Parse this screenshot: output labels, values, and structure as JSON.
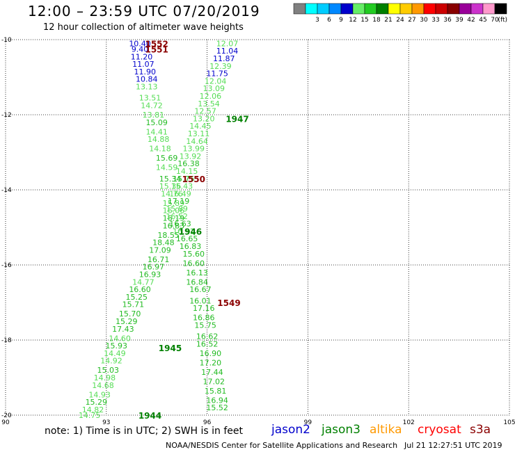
{
  "header": {
    "title": "12:00 – 23:59 UTC 07/20/2019",
    "subtitle": "12 hour collection of altimeter wave heights"
  },
  "footer": {
    "note": "note: 1) Time is in UTC; 2) SWH is in feet",
    "credit": "NOAA/NESDIS Center for Satellite Applications and Research",
    "timestamp": "Jul 21 12:27:51 UTC 2019"
  },
  "satellites": [
    {
      "name": "jason2",
      "color": "#0000cc"
    },
    {
      "name": "jason3",
      "color": "#008000"
    },
    {
      "name": "altika",
      "color": "#ff9900"
    },
    {
      "name": "cryosat",
      "color": "#ff0000"
    },
    {
      "name": "s3a",
      "color": "#8b0000"
    }
  ],
  "colorbar": {
    "unit_label": "(ft)",
    "items": [
      {
        "label": "",
        "color": "#808080"
      },
      {
        "label": "3",
        "color": "#00ffff"
      },
      {
        "label": "6",
        "color": "#00ccff"
      },
      {
        "label": "9",
        "color": "#0088ff"
      },
      {
        "label": "12",
        "color": "#0000cc"
      },
      {
        "label": "15",
        "color": "#66ee66"
      },
      {
        "label": "18",
        "color": "#22cc22"
      },
      {
        "label": "21",
        "color": "#008000"
      },
      {
        "label": "24",
        "color": "#ffff00"
      },
      {
        "label": "27",
        "color": "#ffcc00"
      },
      {
        "label": "30",
        "color": "#ff9900"
      },
      {
        "label": "33",
        "color": "#ff0000"
      },
      {
        "label": "36",
        "color": "#cc0000"
      },
      {
        "label": "39",
        "color": "#880000"
      },
      {
        "label": "42",
        "color": "#990099"
      },
      {
        "label": "45",
        "color": "#cc33cc"
      },
      {
        "label": "70",
        "color": "#ff99cc"
      },
      {
        "label": "",
        "color": "#000000"
      }
    ]
  },
  "chart_data": {
    "type": "scatter",
    "title": "12:00 – 23:59 UTC 07/20/2019",
    "subtitle": "12 hour collection of altimeter wave heights",
    "xlim": [
      90,
      105
    ],
    "ylim": [
      -20,
      -10
    ],
    "x_ticks": [
      "90",
      "93",
      "96",
      "99",
      "102",
      "105"
    ],
    "y_ticks": [
      "-10",
      "-12",
      "-14",
      "-16",
      "-18",
      "-20"
    ],
    "grid": true,
    "value_colors": {
      "blue": "#0000cc",
      "light_green": "#55dd55",
      "green": "#22bb22",
      "dark_green": "#008000",
      "dark_red": "#8b0000"
    },
    "time_labels": [
      {
        "text": "1552",
        "lon": 94.5,
        "lat": -10.1,
        "color": "#8b0000"
      },
      {
        "text": "1551",
        "lon": 94.5,
        "lat": -10.25,
        "color": "#8b0000"
      },
      {
        "text": "1947",
        "lon": 96.9,
        "lat": -12.1,
        "color": "#008000"
      },
      {
        "text": "1550",
        "lon": 95.6,
        "lat": -13.7,
        "color": "#8b0000"
      },
      {
        "text": "1946",
        "lon": 95.5,
        "lat": -15.1,
        "color": "#008000"
      },
      {
        "text": "1549",
        "lon": 96.65,
        "lat": -17.0,
        "color": "#8b0000"
      },
      {
        "text": "1945",
        "lon": 94.9,
        "lat": -18.2,
        "color": "#008000"
      },
      {
        "text": "1944",
        "lon": 94.3,
        "lat": -20.0,
        "color": "#008000"
      }
    ],
    "s3a_track_points": [
      {
        "lon": 94.0,
        "lat": -10.1,
        "swh": "10.40",
        "c": "blue"
      },
      {
        "lon": 94.0,
        "lat": -10.25,
        "swh": "9.40",
        "c": "blue"
      },
      {
        "lon": 94.05,
        "lat": -10.45,
        "swh": "11.20",
        "c": "blue"
      },
      {
        "lon": 94.1,
        "lat": -10.65,
        "swh": "11.07",
        "c": "blue"
      },
      {
        "lon": 94.15,
        "lat": -10.85,
        "swh": "11.90",
        "c": "blue"
      },
      {
        "lon": 94.2,
        "lat": -11.05,
        "swh": "10.84",
        "c": "blue"
      },
      {
        "lon": 94.2,
        "lat": -11.25,
        "swh": "13.13",
        "c": "light_green"
      },
      {
        "lon": 94.3,
        "lat": -11.55,
        "swh": "13.51",
        "c": "light_green"
      },
      {
        "lon": 94.35,
        "lat": -11.75,
        "swh": "14.72",
        "c": "light_green"
      },
      {
        "lon": 94.4,
        "lat": -12.0,
        "swh": "13.81",
        "c": "light_green"
      },
      {
        "lon": 94.5,
        "lat": -12.2,
        "swh": "15.09",
        "c": "green"
      },
      {
        "lon": 94.5,
        "lat": -12.45,
        "swh": "14.41",
        "c": "light_green"
      },
      {
        "lon": 94.55,
        "lat": -12.65,
        "swh": "14.88",
        "c": "light_green"
      },
      {
        "lon": 94.6,
        "lat": -12.9,
        "swh": "14.18",
        "c": "light_green"
      },
      {
        "lon": 94.8,
        "lat": -13.15,
        "swh": "15.69",
        "c": "green"
      },
      {
        "lon": 94.8,
        "lat": -13.4,
        "swh": "14.59",
        "c": "light_green"
      },
      {
        "lon": 94.9,
        "lat": -13.7,
        "swh": "15.34",
        "c": "green"
      },
      {
        "lon": 94.9,
        "lat": -13.9,
        "swh": "15.36",
        "c": "light_green"
      },
      {
        "lon": 94.95,
        "lat": -14.1,
        "swh": "14.76",
        "c": "light_green"
      },
      {
        "lon": 95.0,
        "lat": -14.35,
        "swh": "15.89",
        "c": "light_green"
      },
      {
        "lon": 95.0,
        "lat": -14.55,
        "swh": "16.06",
        "c": "light_green"
      },
      {
        "lon": 95.0,
        "lat": -14.75,
        "swh": "16.19",
        "c": "green"
      },
      {
        "lon": 95.0,
        "lat": -14.95,
        "swh": "16.83",
        "c": "green"
      },
      {
        "lon": 94.85,
        "lat": -15.2,
        "swh": "18.55",
        "c": "green"
      },
      {
        "lon": 94.7,
        "lat": -15.4,
        "swh": "18.48",
        "c": "green"
      },
      {
        "lon": 94.6,
        "lat": -15.6,
        "swh": "17.09",
        "c": "green"
      },
      {
        "lon": 94.55,
        "lat": -15.85,
        "swh": "16.71",
        "c": "green"
      },
      {
        "lon": 94.4,
        "lat": -16.05,
        "swh": "16.97",
        "c": "green"
      },
      {
        "lon": 94.3,
        "lat": -16.25,
        "swh": "16.93",
        "c": "green"
      },
      {
        "lon": 94.1,
        "lat": -16.45,
        "swh": "14.77",
        "c": "light_green"
      },
      {
        "lon": 94.0,
        "lat": -16.65,
        "swh": "16.60",
        "c": "green"
      },
      {
        "lon": 93.9,
        "lat": -16.85,
        "swh": "15.25",
        "c": "green"
      },
      {
        "lon": 93.8,
        "lat": -17.05,
        "swh": "15.71",
        "c": "green"
      },
      {
        "lon": 93.7,
        "lat": -17.3,
        "swh": "15.70",
        "c": "green"
      },
      {
        "lon": 93.6,
        "lat": -17.5,
        "swh": "15.29",
        "c": "green"
      },
      {
        "lon": 93.5,
        "lat": -17.7,
        "swh": "17.43",
        "c": "green"
      },
      {
        "lon": 93.4,
        "lat": -17.95,
        "swh": "14.60",
        "c": "light_green"
      },
      {
        "lon": 93.3,
        "lat": -18.15,
        "swh": "15.93",
        "c": "green"
      },
      {
        "lon": 93.25,
        "lat": -18.35,
        "swh": "14.49",
        "c": "light_green"
      },
      {
        "lon": 93.15,
        "lat": -18.55,
        "swh": "14.92",
        "c": "light_green"
      },
      {
        "lon": 93.05,
        "lat": -18.8,
        "swh": "15.03",
        "c": "green"
      },
      {
        "lon": 92.95,
        "lat": -19.0,
        "swh": "14.98",
        "c": "light_green"
      },
      {
        "lon": 92.9,
        "lat": -19.2,
        "swh": "14.68",
        "c": "light_green"
      },
      {
        "lon": 92.8,
        "lat": -19.45,
        "swh": "14.93",
        "c": "light_green"
      },
      {
        "lon": 92.7,
        "lat": -19.65,
        "swh": "15.29",
        "c": "green"
      },
      {
        "lon": 92.6,
        "lat": -19.85,
        "swh": "14.82",
        "c": "light_green"
      },
      {
        "lon": 92.5,
        "lat": -20.0,
        "swh": "14.75",
        "c": "light_green"
      }
    ],
    "jason3_track_points": [
      {
        "lon": 96.6,
        "lat": -10.1,
        "swh": "12.07",
        "c": "light_green"
      },
      {
        "lon": 96.6,
        "lat": -10.3,
        "swh": "11.04",
        "c": "blue"
      },
      {
        "lon": 96.5,
        "lat": -10.5,
        "swh": "11.87",
        "c": "blue"
      },
      {
        "lon": 96.4,
        "lat": -10.7,
        "swh": "12.39",
        "c": "light_green"
      },
      {
        "lon": 96.3,
        "lat": -10.9,
        "swh": "11.75",
        "c": "blue"
      },
      {
        "lon": 96.25,
        "lat": -11.1,
        "swh": "12.04",
        "c": "light_green"
      },
      {
        "lon": 96.2,
        "lat": -11.3,
        "swh": "13.09",
        "c": "light_green"
      },
      {
        "lon": 96.1,
        "lat": -11.5,
        "swh": "12.06",
        "c": "light_green"
      },
      {
        "lon": 96.05,
        "lat": -11.7,
        "swh": "13.54",
        "c": "light_green"
      },
      {
        "lon": 95.95,
        "lat": -11.9,
        "swh": "12.57",
        "c": "light_green"
      },
      {
        "lon": 95.9,
        "lat": -12.1,
        "swh": "13.20",
        "c": "light_green"
      },
      {
        "lon": 95.8,
        "lat": -12.3,
        "swh": "14.45",
        "c": "light_green"
      },
      {
        "lon": 95.75,
        "lat": -12.5,
        "swh": "13.11",
        "c": "light_green"
      },
      {
        "lon": 95.7,
        "lat": -12.7,
        "swh": "14.64",
        "c": "light_green"
      },
      {
        "lon": 95.6,
        "lat": -12.9,
        "swh": "13.99",
        "c": "light_green"
      },
      {
        "lon": 95.5,
        "lat": -13.1,
        "swh": "13.92",
        "c": "light_green"
      },
      {
        "lon": 95.45,
        "lat": -13.3,
        "swh": "16.38",
        "c": "green"
      },
      {
        "lon": 95.4,
        "lat": -13.5,
        "swh": "14.15",
        "c": "light_green"
      },
      {
        "lon": 95.3,
        "lat": -13.7,
        "swh": "15.75",
        "c": "green"
      },
      {
        "lon": 95.25,
        "lat": -13.9,
        "swh": "15.43",
        "c": "light_green"
      },
      {
        "lon": 95.2,
        "lat": -14.1,
        "swh": "16.49",
        "c": "light_green"
      },
      {
        "lon": 95.15,
        "lat": -14.3,
        "swh": "17.19",
        "c": "green"
      },
      {
        "lon": 95.1,
        "lat": -14.5,
        "swh": "15.89",
        "c": "light_green"
      },
      {
        "lon": 95.1,
        "lat": -14.7,
        "swh": "16.52",
        "c": "light_green"
      },
      {
        "lon": 95.2,
        "lat": -14.9,
        "swh": "16.63",
        "c": "green"
      },
      {
        "lon": 95.3,
        "lat": -15.1,
        "swh": "16.51",
        "c": "light_green"
      },
      {
        "lon": 95.4,
        "lat": -15.3,
        "swh": "16.65",
        "c": "green"
      },
      {
        "lon": 95.5,
        "lat": -15.5,
        "swh": "16.83",
        "c": "green"
      },
      {
        "lon": 95.6,
        "lat": -15.7,
        "swh": "15.60",
        "c": "green"
      },
      {
        "lon": 95.6,
        "lat": -15.95,
        "swh": "16.60",
        "c": "green"
      },
      {
        "lon": 95.7,
        "lat": -16.2,
        "swh": "16.13",
        "c": "green"
      },
      {
        "lon": 95.7,
        "lat": -16.45,
        "swh": "16.84",
        "c": "green"
      },
      {
        "lon": 95.8,
        "lat": -16.65,
        "swh": "16.67",
        "c": "green"
      },
      {
        "lon": 95.8,
        "lat": -16.95,
        "swh": "16.01",
        "c": "green"
      },
      {
        "lon": 95.9,
        "lat": -17.15,
        "swh": "17.16",
        "c": "green"
      },
      {
        "lon": 95.9,
        "lat": -17.4,
        "swh": "16.86",
        "c": "green"
      },
      {
        "lon": 95.95,
        "lat": -17.6,
        "swh": "15.75",
        "c": "green"
      },
      {
        "lon": 96.0,
        "lat": -17.9,
        "swh": "16.62",
        "c": "green"
      },
      {
        "lon": 96.0,
        "lat": -18.1,
        "swh": "16.52",
        "c": "green"
      },
      {
        "lon": 96.1,
        "lat": -18.35,
        "swh": "16.90",
        "c": "green"
      },
      {
        "lon": 96.1,
        "lat": -18.6,
        "swh": "17.20",
        "c": "green"
      },
      {
        "lon": 96.15,
        "lat": -18.85,
        "swh": "17.44",
        "c": "green"
      },
      {
        "lon": 96.2,
        "lat": -19.1,
        "swh": "17.02",
        "c": "green"
      },
      {
        "lon": 96.25,
        "lat": -19.35,
        "swh": "15.81",
        "c": "green"
      },
      {
        "lon": 96.3,
        "lat": -19.6,
        "swh": "16.94",
        "c": "green"
      },
      {
        "lon": 96.3,
        "lat": -19.8,
        "swh": "15.52",
        "c": "green"
      }
    ]
  }
}
